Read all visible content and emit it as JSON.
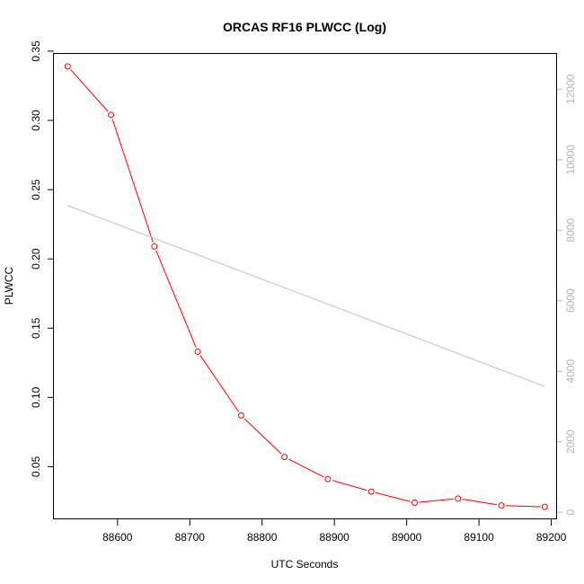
{
  "chart_data": {
    "type": "line",
    "title": "ORCAS RF16 PLWCC (Log)",
    "xlabel": "UTC Seconds",
    "ylabel": "PLWCC",
    "xlim": [
      88512,
      89208
    ],
    "ylim": [
      0.012,
      0.348
    ],
    "y2lim": [
      -200,
      13000
    ],
    "x_ticks": [
      88600,
      88700,
      88800,
      88900,
      89000,
      89100,
      89200
    ],
    "y_ticks": [
      0.05,
      0.1,
      0.15,
      0.2,
      0.25,
      0.3,
      0.35
    ],
    "y2_ticks": [
      0,
      2000,
      4000,
      6000,
      8000,
      10000,
      12000
    ],
    "x_tick_labels": [
      "88600",
      "88700",
      "88800",
      "88900",
      "89000",
      "89100",
      "89200"
    ],
    "y_tick_labels": [
      "0.05",
      "0.10",
      "0.15",
      "0.20",
      "0.25",
      "0.30",
      "0.35"
    ],
    "y2_tick_labels": [
      "0",
      "2000",
      "4000",
      "6000",
      "8000",
      "10000",
      "12000"
    ],
    "series": [
      {
        "axis": "left",
        "color": "#ff0000",
        "markers": "open-circle",
        "x": [
          88531,
          88591,
          88651,
          88711,
          88771,
          88831,
          88891,
          88951,
          89011,
          89071,
          89131,
          89191
        ],
        "values": [
          0.339,
          0.304,
          0.209,
          0.133,
          0.087,
          0.057,
          0.041,
          0.032,
          0.024,
          0.027,
          0.022,
          0.021
        ]
      },
      {
        "axis": "right",
        "color": "#bebebe",
        "markers": "none",
        "x": [
          88531,
          89191
        ],
        "values": [
          8700,
          3570
        ]
      }
    ],
    "grid": false,
    "legend": "none"
  }
}
